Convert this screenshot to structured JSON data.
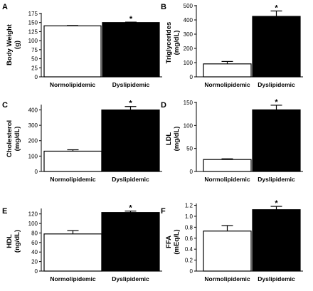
{
  "chart_data": [
    {
      "panel": "A",
      "type": "bar",
      "categories": [
        "Normolipidemic",
        "Dyslipidemic"
      ],
      "values": [
        141,
        150
      ],
      "errors": [
        0.8,
        1.2
      ],
      "significance": [
        "",
        "*"
      ],
      "bar_colors": [
        "#ffffff",
        "#000000"
      ],
      "ylabel_lines": [
        "Body  Weight",
        "(g)"
      ],
      "ylim": [
        0,
        175
      ],
      "yticks": [
        0,
        25,
        50,
        75,
        100,
        125,
        150,
        175
      ],
      "ytick_labels": [
        "0",
        "25",
        "50",
        "75",
        "100",
        "125",
        "150",
        "175"
      ]
    },
    {
      "panel": "B",
      "type": "bar",
      "categories": [
        "Normolipidemic",
        "Dyslipidemic"
      ],
      "values": [
        91,
        425
      ],
      "errors": [
        17,
        38
      ],
      "significance": [
        "",
        "*"
      ],
      "bar_colors": [
        "#ffffff",
        "#000000"
      ],
      "ylabel_lines": [
        "Triglycerides",
        "(mg/dL)"
      ],
      "ylim": [
        0,
        500
      ],
      "yticks": [
        0,
        100,
        200,
        300,
        400,
        500
      ],
      "ytick_labels": [
        "0",
        "100",
        "200",
        "300",
        "400",
        "500"
      ]
    },
    {
      "panel": "C",
      "type": "bar",
      "categories": [
        "Normolipidemic",
        "Dyslipidemic"
      ],
      "values": [
        132,
        400
      ],
      "errors": [
        9,
        22
      ],
      "significance": [
        "",
        "*"
      ],
      "bar_colors": [
        "#ffffff",
        "#000000"
      ],
      "ylabel_lines": [
        "Cholesterol",
        "(mg/dL)"
      ],
      "ylim": [
        0,
        430
      ],
      "yticks": [
        0,
        100,
        200,
        300,
        400
      ],
      "ytick_labels": [
        "0",
        "100",
        "200",
        "300",
        "400"
      ]
    },
    {
      "panel": "D",
      "type": "bar",
      "categories": [
        "Normolipidemic",
        "Dyslipidemic"
      ],
      "values": [
        26,
        134
      ],
      "errors": [
        1.5,
        10
      ],
      "significance": [
        "",
        "*"
      ],
      "bar_colors": [
        "#ffffff",
        "#000000"
      ],
      "ylabel_lines": [
        "LDL",
        "(mg/dL)"
      ],
      "ylim": [
        0,
        150
      ],
      "yticks": [
        0,
        50,
        100,
        150
      ],
      "ytick_labels": [
        "0",
        "50",
        "100",
        "150"
      ]
    },
    {
      "panel": "E",
      "type": "bar",
      "categories": [
        "Normolipidemic",
        "Dyslipidemic"
      ],
      "values": [
        78,
        123
      ],
      "errors": [
        7,
        3
      ],
      "significance": [
        "",
        "*"
      ],
      "bar_colors": [
        "#ffffff",
        "#000000"
      ],
      "ylabel_lines": [
        "HDL",
        "(ng/dL)"
      ],
      "ylim": [
        0,
        130
      ],
      "yticks": [
        0,
        20,
        40,
        60,
        80,
        100,
        120
      ],
      "ytick_labels": [
        "0",
        "20",
        "40",
        "60",
        "80",
        "100",
        "120"
      ]
    },
    {
      "panel": "F",
      "type": "bar",
      "categories": [
        "Normolipidemic",
        "Dyslipidemic"
      ],
      "values": [
        0.73,
        1.12
      ],
      "errors": [
        0.1,
        0.06
      ],
      "significance": [
        "",
        "*"
      ],
      "bar_colors": [
        "#ffffff",
        "#000000"
      ],
      "ylabel_lines": [
        "FFA",
        "(mEq/L)"
      ],
      "ylim": [
        0,
        1.22
      ],
      "yticks": [
        0,
        0.2,
        0.4,
        0.6,
        0.8,
        1.0,
        1.2
      ],
      "ytick_labels": [
        "0",
        "0.2",
        "0.4",
        "0.6",
        "0.8",
        "1.0",
        "1.2"
      ]
    }
  ]
}
